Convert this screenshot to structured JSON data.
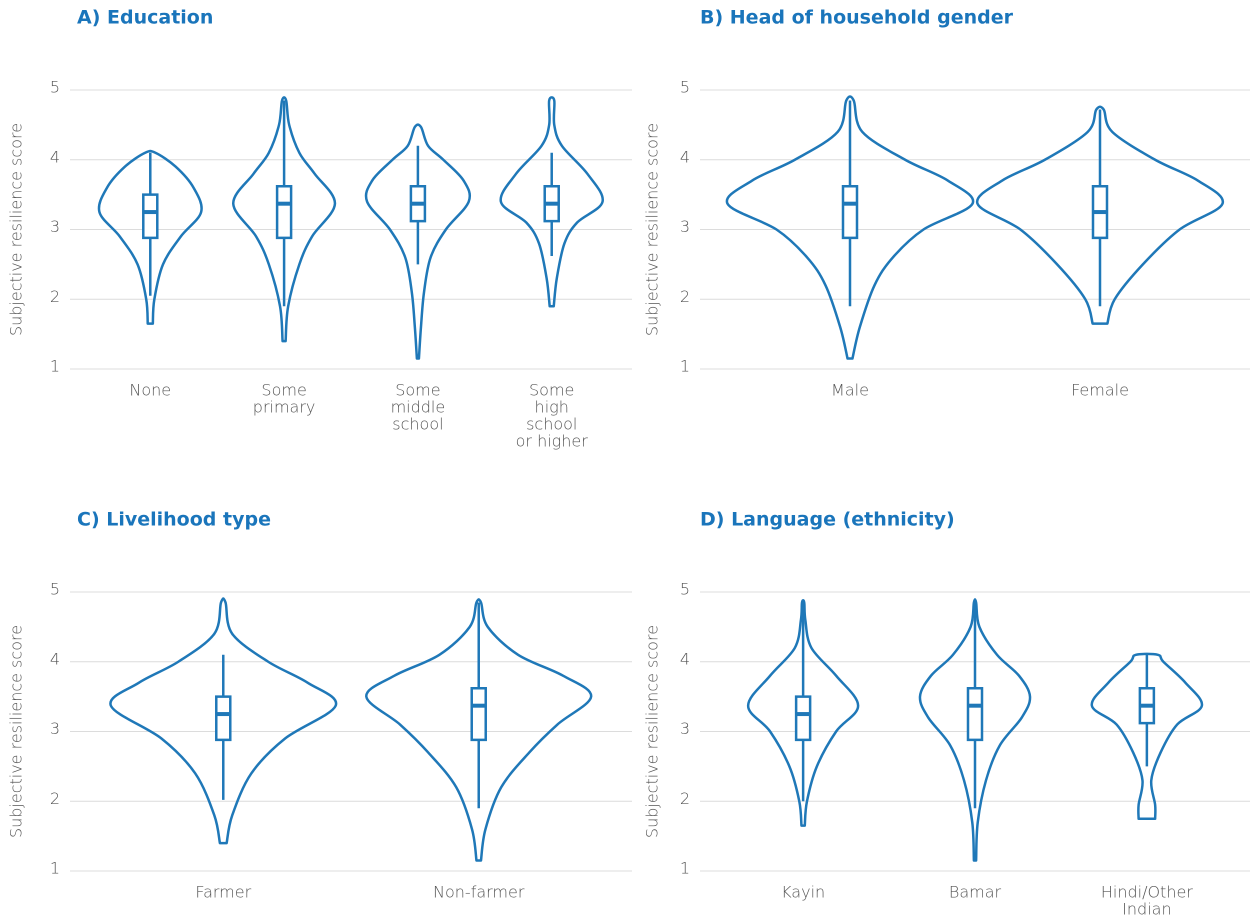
{
  "chart_data": [
    {
      "type": "violin",
      "title": "A) Education",
      "ylabel": "Subjective resilience score",
      "categories": [
        [
          "None"
        ],
        [
          "Some",
          "primary"
        ],
        [
          "Some",
          "middle",
          "school"
        ],
        [
          "Some",
          "high",
          "school",
          "or higher"
        ]
      ],
      "ylim": [
        1,
        5
      ],
      "yticks": [
        1,
        2,
        3,
        4,
        5
      ],
      "grid": true,
      "color": "#1f78b8",
      "violins": [
        {
          "min": 2.05,
          "q1": 2.88,
          "median": 3.25,
          "q3": 3.5,
          "max": 4.1,
          "density_y": [
            1.65,
            2.0,
            2.5,
            2.9,
            3.25,
            3.6,
            3.9,
            4.1
          ],
          "density": [
            0.05,
            0.08,
            0.25,
            0.6,
            1.0,
            0.85,
            0.5,
            0.1
          ]
        },
        {
          "min": 1.9,
          "q1": 2.88,
          "median": 3.37,
          "q3": 3.62,
          "max": 4.85,
          "density_y": [
            1.4,
            1.9,
            2.5,
            2.9,
            3.37,
            3.8,
            4.1,
            4.5,
            4.85
          ],
          "density": [
            0.03,
            0.08,
            0.3,
            0.55,
            1.0,
            0.6,
            0.3,
            0.1,
            0.04
          ]
        },
        {
          "min": 2.5,
          "q1": 3.12,
          "median": 3.37,
          "q3": 3.62,
          "max": 4.2,
          "density_y": [
            1.15,
            1.6,
            2.1,
            2.6,
            3.0,
            3.4,
            3.7,
            4.0,
            4.2,
            4.47
          ],
          "density": [
            0.02,
            0.06,
            0.12,
            0.25,
            0.55,
            1.0,
            0.9,
            0.5,
            0.2,
            0.06
          ]
        },
        {
          "min": 2.62,
          "q1": 3.12,
          "median": 3.37,
          "q3": 3.62,
          "max": 4.1,
          "density_y": [
            1.9,
            2.3,
            2.8,
            3.1,
            3.4,
            3.8,
            4.2,
            4.5,
            4.85
          ],
          "density": [
            0.04,
            0.1,
            0.25,
            0.5,
            1.0,
            0.7,
            0.2,
            0.05,
            0.05
          ]
        }
      ]
    },
    {
      "type": "violin",
      "title": "B) Head of household gender",
      "ylabel": "Subjective resilience score",
      "categories": [
        [
          "Male"
        ],
        [
          "Female"
        ]
      ],
      "ylim": [
        1,
        5
      ],
      "yticks": [
        1,
        2,
        3,
        4,
        5
      ],
      "grid": true,
      "color": "#1f78b8",
      "violins": [
        {
          "min": 1.9,
          "q1": 2.88,
          "median": 3.37,
          "q3": 3.62,
          "max": 4.85,
          "density_y": [
            1.15,
            1.6,
            2.2,
            2.6,
            3.0,
            3.37,
            3.7,
            4.0,
            4.4,
            4.85
          ],
          "density": [
            0.02,
            0.08,
            0.2,
            0.35,
            0.6,
            1.0,
            0.8,
            0.45,
            0.1,
            0.03
          ]
        },
        {
          "min": 1.9,
          "q1": 2.88,
          "median": 3.25,
          "q3": 3.62,
          "max": 4.72,
          "density_y": [
            1.65,
            2.0,
            2.5,
            3.0,
            3.37,
            3.7,
            4.0,
            4.4,
            4.72
          ],
          "density": [
            0.06,
            0.12,
            0.35,
            0.65,
            1.0,
            0.8,
            0.45,
            0.1,
            0.03
          ]
        }
      ]
    },
    {
      "type": "violin",
      "title": "C) Livelihood type",
      "ylabel": "Subjective resilience score",
      "categories": [
        [
          "Farmer"
        ],
        [
          "Non-farmer"
        ]
      ],
      "ylim": [
        1,
        5
      ],
      "yticks": [
        1,
        2,
        3,
        4,
        5
      ],
      "grid": true,
      "color": "#1f78b8",
      "violins": [
        {
          "min": 2.02,
          "q1": 2.88,
          "median": 3.25,
          "q3": 3.5,
          "max": 4.1,
          "density_y": [
            1.4,
            1.8,
            2.4,
            2.9,
            3.37,
            3.7,
            4.0,
            4.4,
            4.85
          ],
          "density": [
            0.03,
            0.08,
            0.25,
            0.55,
            1.0,
            0.75,
            0.4,
            0.08,
            0.02
          ]
        },
        {
          "min": 1.9,
          "q1": 2.88,
          "median": 3.37,
          "q3": 3.62,
          "max": 4.85,
          "density_y": [
            1.15,
            1.6,
            2.2,
            2.7,
            3.1,
            3.5,
            3.8,
            4.1,
            4.5,
            4.85
          ],
          "density": [
            0.02,
            0.06,
            0.2,
            0.45,
            0.7,
            1.0,
            0.75,
            0.35,
            0.08,
            0.02
          ]
        }
      ]
    },
    {
      "type": "violin",
      "title": "D) Language (ethnicity)",
      "ylabel": "Subjective resilience score",
      "categories": [
        [
          "Kayin"
        ],
        [
          "Bamar"
        ],
        [
          "Hindi/Other",
          "Indian"
        ]
      ],
      "ylim": [
        1,
        5
      ],
      "yticks": [
        1,
        2,
        3,
        4,
        5
      ],
      "grid": true,
      "color": "#1f78b8",
      "violins": [
        {
          "min": 2.0,
          "q1": 2.88,
          "median": 3.25,
          "q3": 3.5,
          "max": 4.85,
          "density_y": [
            1.65,
            2.0,
            2.5,
            3.0,
            3.37,
            3.8,
            4.2,
            4.6,
            4.85
          ],
          "density": [
            0.03,
            0.07,
            0.25,
            0.6,
            1.0,
            0.6,
            0.15,
            0.04,
            0.02
          ]
        },
        {
          "min": 1.9,
          "q1": 2.88,
          "median": 3.37,
          "q3": 3.62,
          "max": 4.85,
          "density_y": [
            1.15,
            1.7,
            2.3,
            2.8,
            3.2,
            3.5,
            3.8,
            4.1,
            4.5,
            4.85
          ],
          "density": [
            0.02,
            0.05,
            0.2,
            0.45,
            0.85,
            1.0,
            0.8,
            0.4,
            0.08,
            0.02
          ]
        },
        {
          "min": 2.5,
          "q1": 3.12,
          "median": 3.37,
          "q3": 3.62,
          "max": 4.1,
          "density_y": [
            1.75,
            1.95,
            2.3,
            2.7,
            3.1,
            3.37,
            3.7,
            4.0,
            4.1
          ],
          "density": [
            0.15,
            0.15,
            0.08,
            0.25,
            0.55,
            1.0,
            0.7,
            0.3,
            0.2
          ]
        }
      ]
    }
  ]
}
